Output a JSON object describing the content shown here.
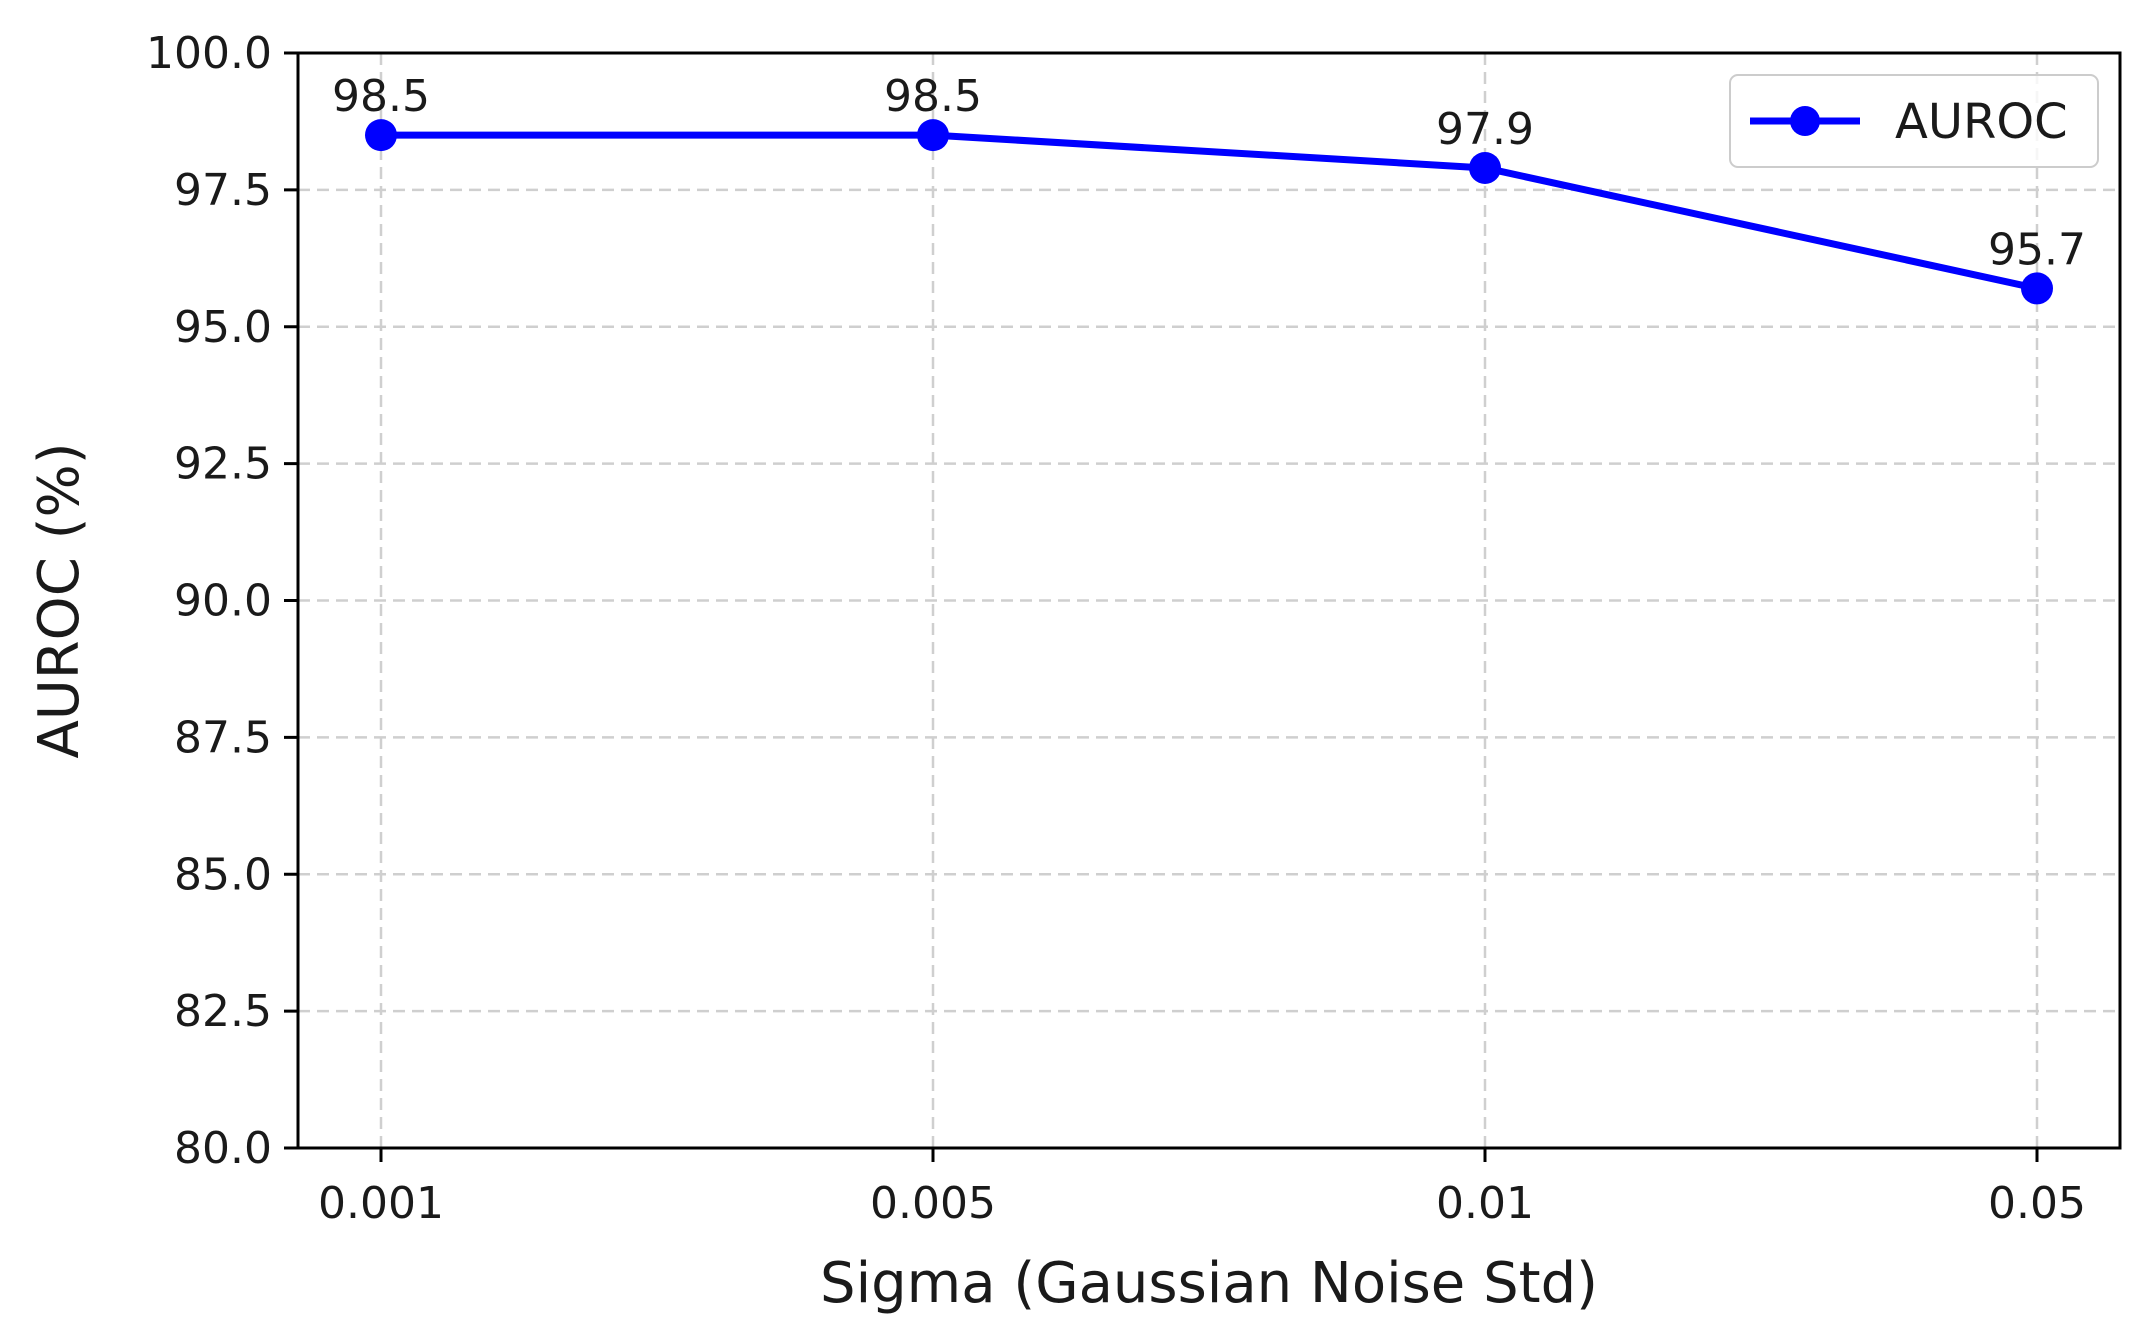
{
  "chart_data": {
    "type": "line",
    "title": "",
    "xlabel": "Sigma (Gaussian Noise Std)",
    "ylabel": "AUROC (%)",
    "categories": [
      "0.001",
      "0.005",
      "0.01",
      "0.05"
    ],
    "series": [
      {
        "name": "AUROC",
        "values": [
          98.5,
          98.5,
          97.9,
          95.7
        ],
        "labels": [
          "98.5",
          "98.5",
          "97.9",
          "95.7"
        ],
        "color": "#0000ff",
        "marker": "circle"
      }
    ],
    "ylim": [
      80.0,
      100.0
    ],
    "yticks": [
      80.0,
      82.5,
      85.0,
      87.5,
      90.0,
      92.5,
      95.0,
      97.5,
      100.0
    ],
    "ytick_labels": [
      "80.0",
      "82.5",
      "85.0",
      "87.5",
      "90.0",
      "92.5",
      "95.0",
      "97.5",
      "100.0"
    ],
    "grid": true,
    "grid_style": "dashed",
    "legend_position": "top-right"
  }
}
